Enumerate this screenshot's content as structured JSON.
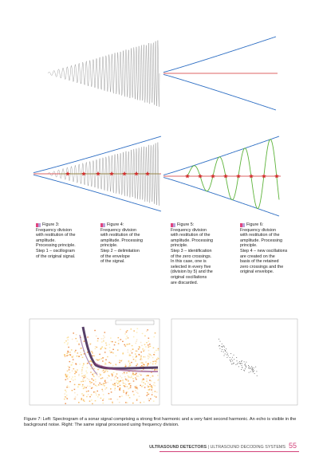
{
  "figures": [
    {
      "label": "Figure 3:",
      "lines": [
        "Frequency division",
        "with restitution of the",
        "amplitude.",
        "Processing principle.",
        "Step 1 – oscillogram",
        "of the original signal."
      ]
    },
    {
      "label": "Figure 4:",
      "lines": [
        "Frequency division",
        "with restitution of the",
        "amplitude. Processing",
        "principle.",
        "Step 2 – delimitation",
        "of the envelope",
        "of the signal."
      ]
    },
    {
      "label": "Figure 5:",
      "lines": [
        "Frequency division",
        "with restitution of the",
        "amplitude. Processing",
        "principle.",
        "Step 3 – identification",
        "of the zero crossings.",
        "In this case, one is",
        "selected in every five",
        "(division by 5) and the",
        "original oscillations",
        "are discarded."
      ]
    },
    {
      "label": "Figure 6:",
      "lines": [
        "Frequency division",
        "with restitution of the",
        "amplitude. Processing",
        "principle.",
        "Step 4 – new oscillations",
        "are created on the",
        "basis of the retained",
        "zero crossings and the",
        "original envelope."
      ]
    }
  ],
  "figure7": {
    "caption": "Figure 7: Left: Spectrogram of a sonar signal comprising a strong first harmonic and a very faint second harmonic. An echo is visible in the background noise. Right: The same signal processed using frequency division."
  },
  "footer": {
    "section": "ULTRASOUND DETECTORS",
    "subsection": "ULTRASOUND DECODING SYSTEMS",
    "page": "55"
  }
}
